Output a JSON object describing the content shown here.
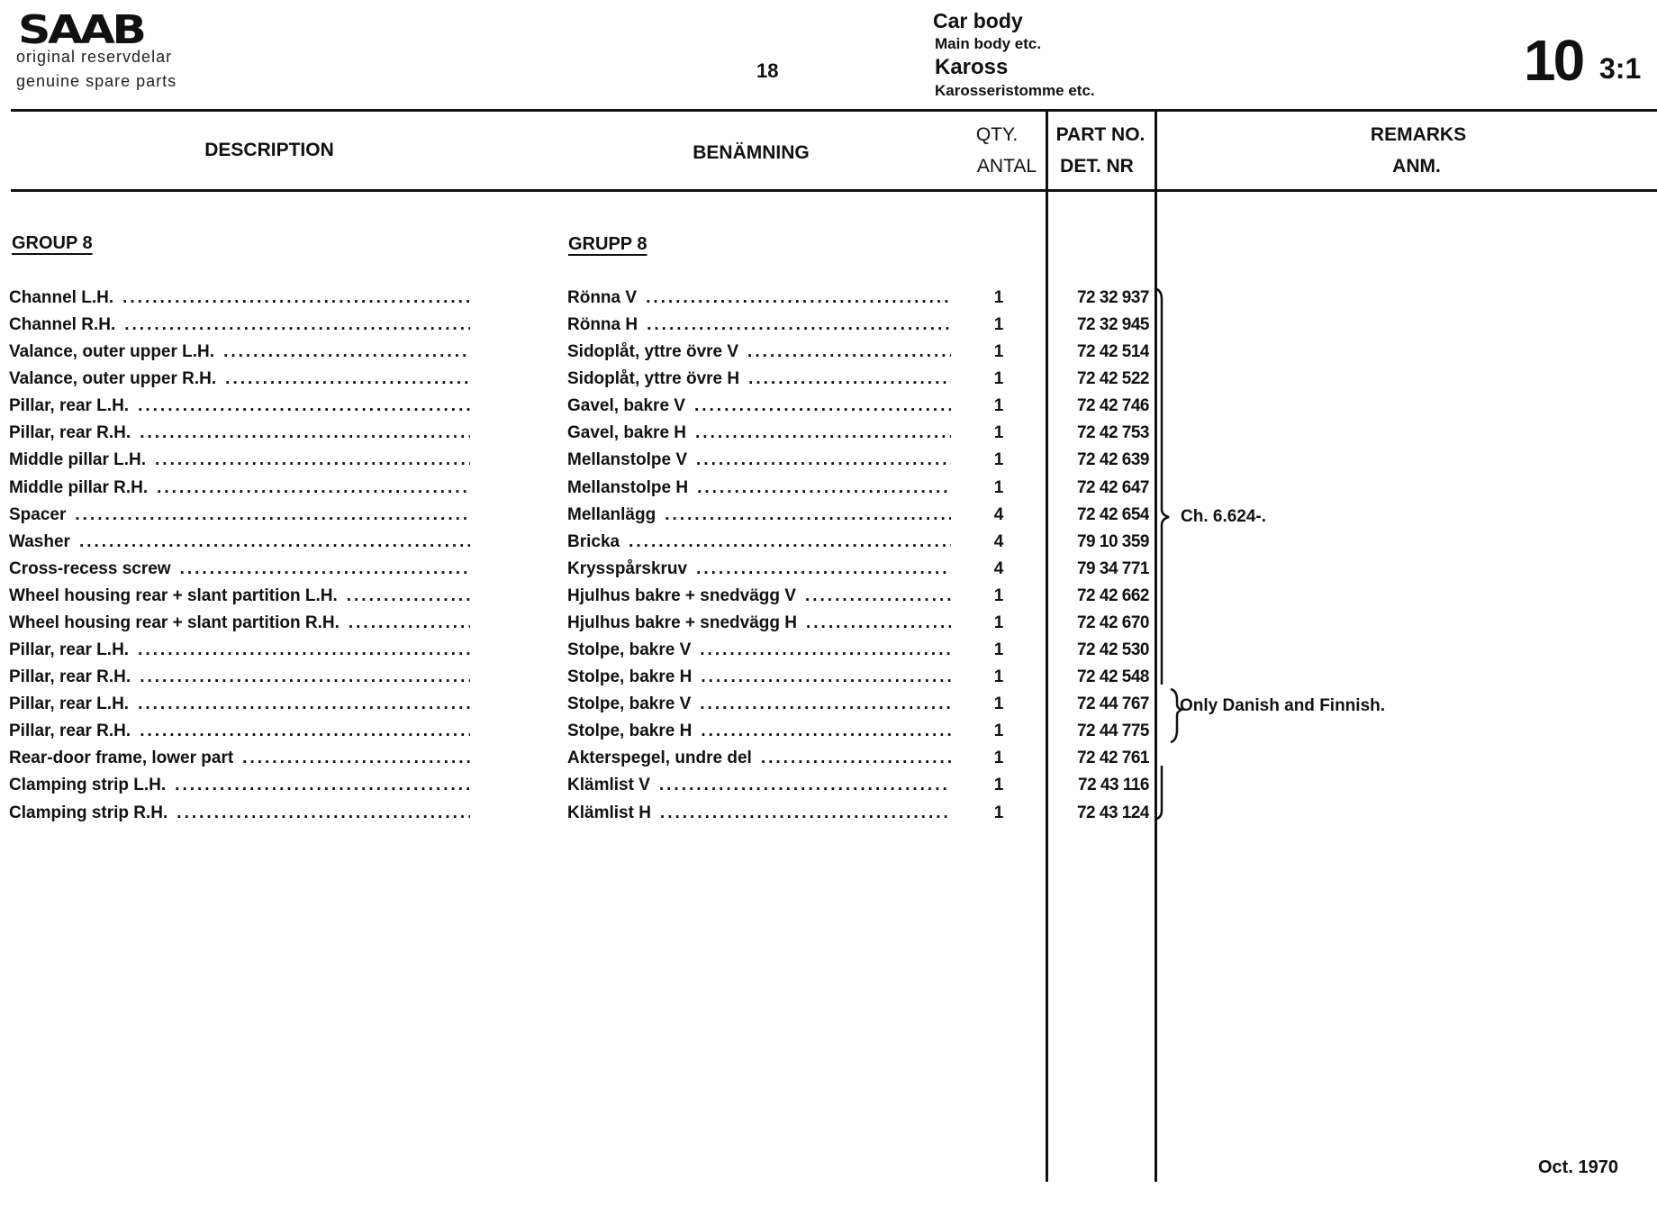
{
  "header": {
    "logo": "SAAB",
    "tagline_1": "original reservdelar",
    "tagline_2": "genuine spare parts",
    "page_number": "18",
    "section_en": "Car body",
    "subsection_en": "Main body etc.",
    "section_sv": "Kaross",
    "subsection_sv": "Karosseristomme etc.",
    "group_number": "10",
    "sheet": "3:1"
  },
  "columns": {
    "description": "DESCRIPTION",
    "benamning": "BENÄMNING",
    "qty_en": "QTY.",
    "qty_sv": "ANTAL",
    "part_en": "PART NO.",
    "part_sv": "DET. NR",
    "remarks_en": "REMARKS",
    "remarks_sv": "ANM."
  },
  "group": {
    "en": "GROUP 8",
    "sv": "GRUPP 8"
  },
  "rows": [
    {
      "desc": "Channel L.H.",
      "ben": "Rönna V",
      "qty": "1",
      "part": "72 32 937"
    },
    {
      "desc": "Channel R.H.",
      "ben": "Rönna H",
      "qty": "1",
      "part": "72 32 945"
    },
    {
      "desc": "Valance, outer upper L.H.",
      "ben": "Sidoplåt, yttre övre V",
      "qty": "1",
      "part": "72 42 514"
    },
    {
      "desc": "Valance, outer upper R.H.",
      "ben": "Sidoplåt, yttre övre H",
      "qty": "1",
      "part": "72 42 522"
    },
    {
      "desc": "Pillar, rear L.H.",
      "ben": "Gavel, bakre V",
      "qty": "1",
      "part": "72 42 746"
    },
    {
      "desc": "Pillar, rear R.H.",
      "ben": "Gavel, bakre H",
      "qty": "1",
      "part": "72 42 753"
    },
    {
      "desc": "Middle pillar L.H.",
      "ben": "Mellanstolpe V",
      "qty": "1",
      "part": "72 42 639"
    },
    {
      "desc": "Middle pillar R.H.",
      "ben": "Mellanstolpe H",
      "qty": "1",
      "part": "72 42 647"
    },
    {
      "desc": "Spacer",
      "ben": "Mellanlägg",
      "qty": "4",
      "part": "72 42 654"
    },
    {
      "desc": "Washer",
      "ben": "Bricka",
      "qty": "4",
      "part": "79 10 359"
    },
    {
      "desc": "Cross-recess screw",
      "ben": "Krysspårskruv",
      "qty": "4",
      "part": "79 34 771"
    },
    {
      "desc": "Wheel housing rear + slant partition L.H.",
      "ben": "Hjulhus bakre + snedvägg V",
      "qty": "1",
      "part": "72 42 662"
    },
    {
      "desc": "Wheel housing rear + slant partition R.H.",
      "ben": "Hjulhus bakre + snedvägg H",
      "qty": "1",
      "part": "72 42 670"
    },
    {
      "desc": "Pillar, rear L.H.",
      "ben": "Stolpe, bakre V",
      "qty": "1",
      "part": "72 42 530"
    },
    {
      "desc": "Pillar, rear R.H.",
      "ben": "Stolpe, bakre H",
      "qty": "1",
      "part": "72 42 548"
    },
    {
      "desc": "Pillar, rear L.H.",
      "ben": "Stolpe, bakre V",
      "qty": "1",
      "part": "72 44 767"
    },
    {
      "desc": "Pillar, rear R.H.",
      "ben": "Stolpe, bakre H",
      "qty": "1",
      "part": "72 44 775"
    },
    {
      "desc": "Rear-door frame, lower part",
      "ben": "Akterspegel, undre del",
      "qty": "1",
      "part": "72 42 761"
    },
    {
      "desc": "Clamping strip L.H.",
      "ben": "Klämlist V",
      "qty": "1",
      "part": "72 43 116"
    },
    {
      "desc": "Clamping strip R.H.",
      "ben": "Klämlist H",
      "qty": "1",
      "part": "72 43 124"
    }
  ],
  "remarks": {
    "chassis": "Ch. 6.624-.",
    "markets": "Only Danish and Finnish."
  },
  "footer": {
    "date": "Oct. 1970"
  }
}
